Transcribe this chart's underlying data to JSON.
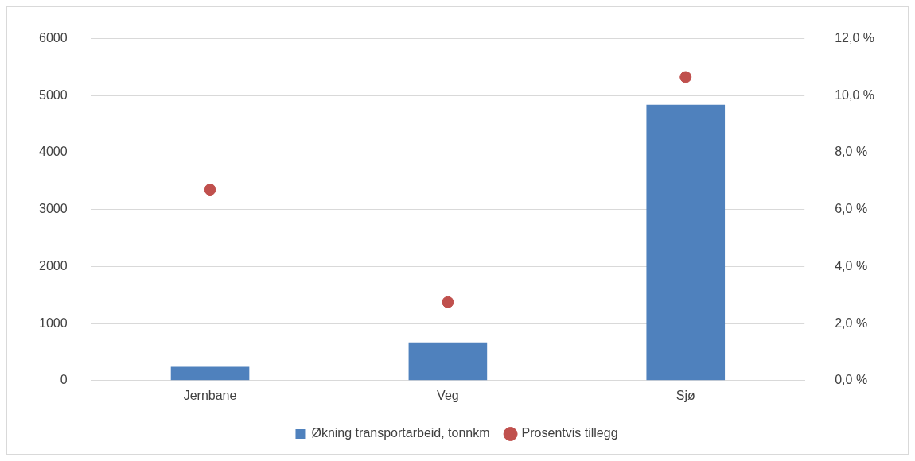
{
  "chart_data": {
    "type": "bar",
    "categories": [
      "Jernbane",
      "Veg",
      "Sjø"
    ],
    "series": [
      {
        "name": "Økning transportarbeid, tonnkm",
        "color": "#4f81bd",
        "values": [
          240,
          670,
          4840
        ]
      },
      {
        "name": "Prosentvis tillegg",
        "type": "scatter",
        "axis": "y2",
        "marker": "circle",
        "color": "#c0504d",
        "x": [
          "Jernbane",
          "Veg",
          "Sjø"
        ],
        "values": [
          6.7,
          2.75,
          10.65
        ]
      }
    ],
    "ylim": [
      0,
      6000
    ],
    "yticks": [
      0,
      1000,
      2000,
      3000,
      4000,
      5000,
      6000
    ],
    "y2lim": [
      0,
      12
    ],
    "y2ticks": [
      {
        "value": 0,
        "label": "0,0 %"
      },
      {
        "value": 2,
        "label": "2,0 %"
      },
      {
        "value": 4,
        "label": "4,0 %"
      },
      {
        "value": 6,
        "label": "6,0 %"
      },
      {
        "value": 8,
        "label": "8,0 %"
      },
      {
        "value": 10,
        "label": "10,0 %"
      },
      {
        "value": 12,
        "label": "12,0 %"
      }
    ],
    "grid": "y",
    "legend": "bottom"
  }
}
